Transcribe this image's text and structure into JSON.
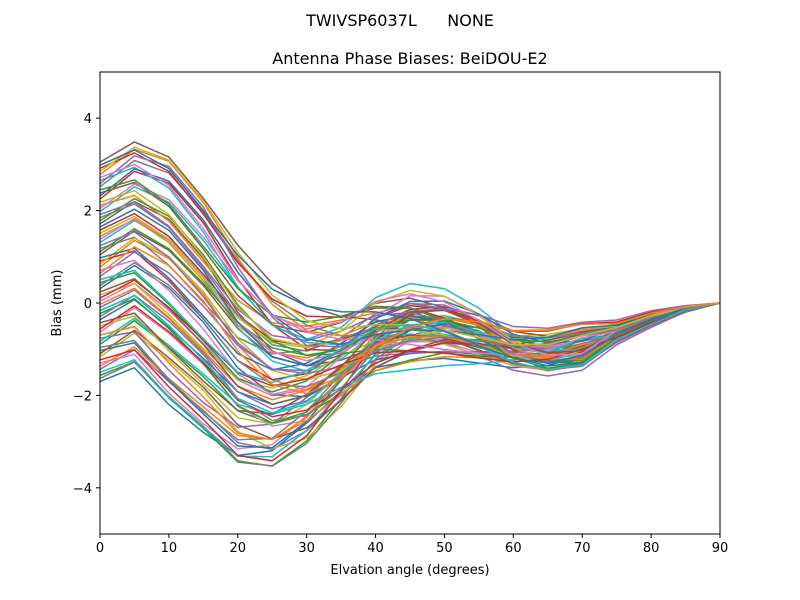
{
  "figure": {
    "suptitle": "TWIVSP6037L      NONE"
  },
  "chart_data": {
    "type": "line",
    "title": "Antenna Phase Biases: BeiDOU-E2",
    "xlabel": "Elvation angle (degrees)",
    "ylabel": "Bias (mm)",
    "xlim": [
      0,
      90
    ],
    "ylim": [
      -5,
      5
    ],
    "xticks": [
      0,
      10,
      20,
      30,
      40,
      50,
      60,
      70,
      80,
      90
    ],
    "yticks": [
      -4,
      -2,
      0,
      2,
      4
    ],
    "grid": false,
    "legend": "none",
    "x": [
      0,
      5,
      10,
      15,
      20,
      25,
      30,
      35,
      40,
      45,
      50,
      55,
      60,
      65,
      70,
      75,
      80,
      85,
      90
    ],
    "color_cycle": [
      "#1f77b4",
      "#ff7f0e",
      "#2ca02c",
      "#d62728",
      "#9467bd",
      "#8c564b",
      "#e377c2",
      "#7f7f7f",
      "#bcbd22",
      "#17becf"
    ],
    "series_count": 72,
    "series_generation": {
      "note": "Family of curves parameterized by starting bias; each series = shape(elevation) scaled per series",
      "start_values_mm": [
        -1.7,
        3.05
      ]
    }
  }
}
